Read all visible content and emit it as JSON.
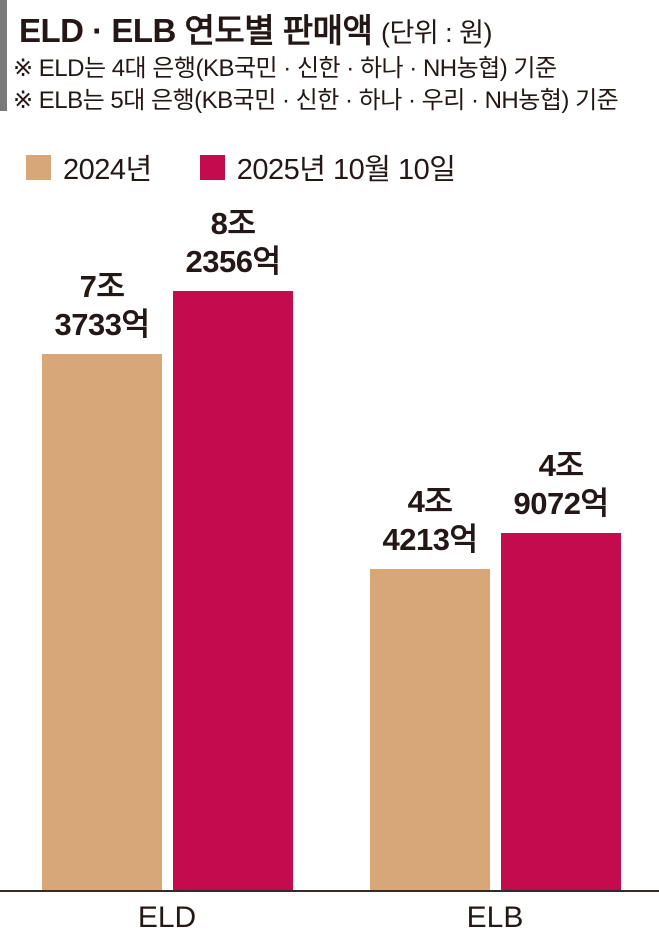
{
  "header": {
    "title": "ELD · ELB 연도별 판매액",
    "unit": "(단위 : 원)",
    "notes": [
      "※ ELD는 4대 은행(KB국민 · 신한 · 하나 · NH농협) 기준",
      "※ ELB는 5대 은행(KB국민 · 신한 · 하나 · 우리 · NH농협) 기준"
    ]
  },
  "chart_data": {
    "type": "bar",
    "title": "ELD · ELB 연도별 판매액",
    "unit_note": "(단위 : 원)",
    "categories": [
      "ELD",
      "ELB"
    ],
    "series": [
      {
        "name": "2024년",
        "color": "#d7a778",
        "values": [
          7.3733,
          4.4213
        ],
        "value_labels": [
          [
            "7조",
            "3733억"
          ],
          [
            "4조",
            "4213억"
          ]
        ]
      },
      {
        "name": "2025년 10월 10일",
        "color": "#c30b4d",
        "values": [
          8.2356,
          4.9072
        ],
        "value_labels": [
          [
            "8조",
            "2356억"
          ],
          [
            "4조",
            "9072억"
          ]
        ]
      }
    ],
    "value_unit": "조 원",
    "ylim": [
      0,
      8.8
    ],
    "grid": false,
    "legend_position": "top-left"
  },
  "colors": {
    "bar_2024": "#d7a778",
    "bar_2025": "#c30b4d",
    "text": "#231815",
    "accent_bar": "#7a7a7a",
    "baseline": "#332b28",
    "background": "#ffffff"
  }
}
